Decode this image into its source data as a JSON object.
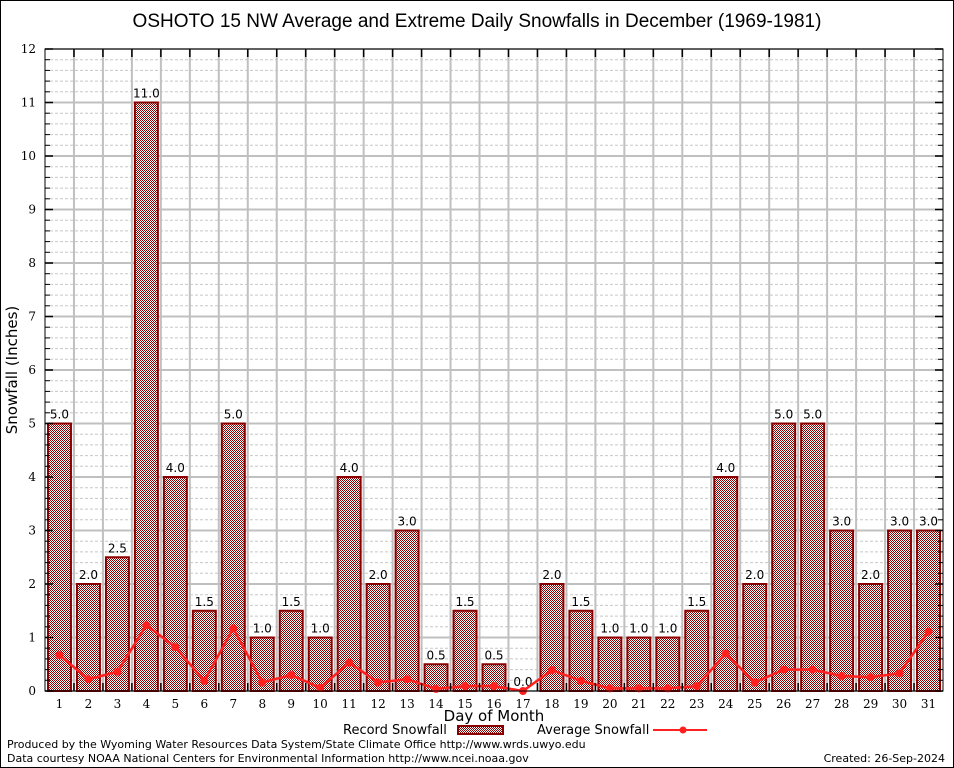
{
  "chart_data": {
    "type": "bar",
    "title": "OSHOTO 15 NW Average and Extreme Daily Snowfalls in December (1969-1981)",
    "xlabel": "Day of Month",
    "ylabel": "Snowfall (Inches)",
    "ylim": [
      0,
      12
    ],
    "yticks": [
      "0",
      "1",
      "2",
      "3",
      "4",
      "5",
      "6",
      "7",
      "8",
      "9",
      "10",
      "11",
      "12"
    ],
    "categories": [
      "1",
      "2",
      "3",
      "4",
      "5",
      "6",
      "7",
      "8",
      "9",
      "10",
      "11",
      "12",
      "13",
      "14",
      "15",
      "16",
      "17",
      "18",
      "19",
      "20",
      "21",
      "22",
      "23",
      "24",
      "25",
      "26",
      "27",
      "28",
      "29",
      "30",
      "31"
    ],
    "grid": true,
    "legend_position": "bottom-center",
    "series": [
      {
        "name": "Record Snowfall",
        "type": "bar",
        "color": "#8b0000",
        "values": [
          5.0,
          2.0,
          2.5,
          11.0,
          4.0,
          1.5,
          5.0,
          1.0,
          1.5,
          1.0,
          4.0,
          2.0,
          3.0,
          0.5,
          1.5,
          0.5,
          0.0,
          2.0,
          1.5,
          1.0,
          1.0,
          1.0,
          1.5,
          4.0,
          2.0,
          5.0,
          5.0,
          3.0,
          2.0,
          3.0,
          3.0
        ],
        "labels": [
          "5.0",
          "2.0",
          "2.5",
          "11.0",
          "4.0",
          "1.5",
          "5.0",
          "1.0",
          "1.5",
          "1.0",
          "4.0",
          "2.0",
          "3.0",
          "0.5",
          "1.5",
          "0.5",
          "0.0",
          "2.0",
          "1.5",
          "1.0",
          "1.0",
          "1.0",
          "1.5",
          "4.0",
          "2.0",
          "5.0",
          "5.0",
          "3.0",
          "2.0",
          "3.0",
          "3.0"
        ]
      },
      {
        "name": "Average Snowfall",
        "type": "line",
        "color": "#ff2020",
        "values": [
          0.67,
          0.22,
          0.36,
          1.23,
          0.82,
          0.19,
          1.17,
          0.16,
          0.3,
          0.06,
          0.53,
          0.16,
          0.22,
          0.04,
          0.09,
          0.09,
          0.0,
          0.39,
          0.19,
          0.05,
          0.05,
          0.05,
          0.09,
          0.7,
          0.16,
          0.4,
          0.4,
          0.28,
          0.26,
          0.33,
          1.11
        ]
      }
    ]
  },
  "footer": {
    "line1": "Produced by the Wyoming Water Resources Data System/State Climate Office http://www.wrds.uwyo.edu",
    "line2": "Data courtesy NOAA National Centers for Environmental Information http://www.ncei.noaa.gov",
    "created": "Created:  26-Sep-2024"
  }
}
